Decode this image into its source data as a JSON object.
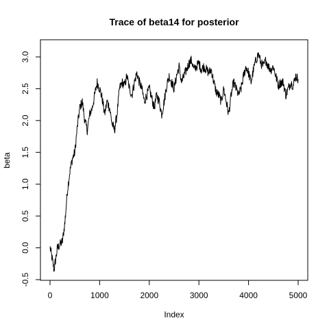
{
  "chart_data": {
    "type": "line",
    "title": "Trace of beta14 for posterior",
    "xlabel": "Index",
    "ylabel": "beta",
    "xlim": [
      1,
      5000
    ],
    "ylim": [
      -0.5,
      3.2
    ],
    "xticks": [
      0,
      1000,
      2000,
      3000,
      4000,
      5000
    ],
    "yticks": [
      -0.5,
      0.0,
      0.5,
      1.0,
      1.5,
      2.0,
      2.5,
      3.0
    ],
    "xtick_labels": [
      "0",
      "1000",
      "2000",
      "3000",
      "4000",
      "5000"
    ],
    "ytick_labels": [
      "-0.5",
      "0.0",
      "0.5",
      "1.0",
      "1.5",
      "2.0",
      "2.5",
      "3.0"
    ],
    "grid": false,
    "legend": "none",
    "line_color": "#000000",
    "series": [
      {
        "x": [
          1,
          50,
          80,
          110,
          150,
          200,
          250,
          300,
          350,
          400,
          450,
          500,
          550,
          600,
          650,
          700,
          750,
          800,
          850,
          900,
          950,
          1000,
          1050,
          1100,
          1150,
          1200,
          1250,
          1300,
          1350,
          1400,
          1450,
          1500,
          1550,
          1600,
          1650,
          1700,
          1750,
          1800,
          1850,
          1900,
          1950,
          2000,
          2050,
          2100,
          2150,
          2200,
          2250,
          2300,
          2350,
          2400,
          2450,
          2500,
          2550,
          2600,
          2650,
          2700,
          2750,
          2800,
          2850,
          2900,
          2950,
          3000,
          3050,
          3100,
          3150,
          3200,
          3250,
          3300,
          3350,
          3400,
          3450,
          3500,
          3550,
          3600,
          3650,
          3700,
          3750,
          3800,
          3850,
          3900,
          3950,
          4000,
          4050,
          4100,
          4150,
          4200,
          4250,
          4300,
          4350,
          4400,
          4450,
          4500,
          4550,
          4600,
          4650,
          4700,
          4750,
          4800,
          4850,
          4900,
          4950,
          5000
        ],
        "values": [
          0.0,
          -0.2,
          -0.35,
          -0.2,
          0.0,
          0.05,
          0.1,
          0.4,
          0.9,
          1.2,
          1.4,
          1.5,
          1.9,
          2.2,
          2.3,
          2.0,
          1.85,
          2.1,
          2.2,
          2.4,
          2.6,
          2.5,
          2.35,
          2.1,
          2.3,
          2.2,
          1.95,
          1.85,
          2.1,
          2.5,
          2.6,
          2.55,
          2.7,
          2.5,
          2.4,
          2.6,
          2.75,
          2.6,
          2.5,
          2.3,
          2.4,
          2.5,
          2.35,
          2.2,
          2.4,
          2.3,
          2.1,
          2.3,
          2.55,
          2.7,
          2.6,
          2.5,
          2.7,
          2.85,
          2.6,
          2.7,
          2.8,
          2.9,
          2.95,
          2.8,
          2.85,
          2.9,
          2.8,
          2.85,
          2.8,
          2.75,
          2.8,
          2.6,
          2.45,
          2.4,
          2.3,
          2.5,
          2.3,
          2.1,
          2.4,
          2.6,
          2.5,
          2.4,
          2.5,
          2.7,
          2.85,
          2.75,
          2.6,
          2.8,
          2.95,
          3.05,
          2.9,
          2.85,
          2.95,
          2.85,
          2.8,
          2.85,
          2.7,
          2.55,
          2.6,
          2.6,
          2.4,
          2.5,
          2.6,
          2.55,
          2.7,
          2.65
        ]
      }
    ]
  }
}
